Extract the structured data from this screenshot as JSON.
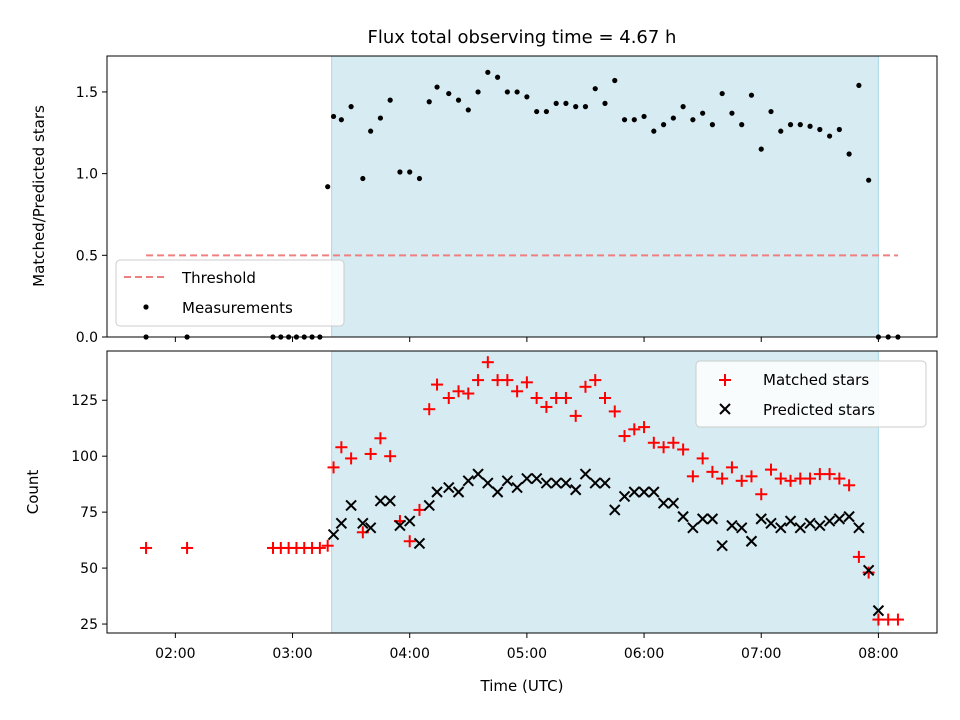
{
  "chart_data": [
    {
      "panel": "top",
      "type": "scatter",
      "title": "Flux total observing time = 4.67 h",
      "xlabel": "",
      "ylabel": "Matched/Predicted stars",
      "xlim": [
        "01:25",
        "08:30"
      ],
      "ylim": [
        0,
        1.72
      ],
      "yticks": [
        "0.0",
        "0.5",
        "1.0",
        "1.5"
      ],
      "xticks": [
        "02:00",
        "03:00",
        "04:00",
        "05:00",
        "06:00",
        "07:00",
        "08:00"
      ],
      "xtick_labels_shown": false,
      "shaded_span": [
        "03:20",
        "08:00"
      ],
      "threshold": {
        "name": "Threshold",
        "value": 0.5,
        "x_range": [
          "01:45",
          "08:10"
        ],
        "color": "#f08080"
      },
      "legend": {
        "position": "lower-left",
        "entries": [
          "Threshold",
          "Measurements"
        ]
      },
      "series": [
        {
          "name": "Measurements",
          "color": "#000000",
          "x": [
            "01:45",
            "02:06",
            "02:50",
            "02:54",
            "02:58",
            "03:02",
            "03:06",
            "03:10",
            "03:14",
            "03:18",
            "03:21",
            "03:25",
            "03:30",
            "03:36",
            "03:40",
            "03:45",
            "03:50",
            "03:55",
            "04:00",
            "04:05",
            "04:10",
            "04:14",
            "04:20",
            "04:25",
            "04:30",
            "04:35",
            "04:40",
            "04:45",
            "04:50",
            "04:55",
            "05:00",
            "05:05",
            "05:10",
            "05:15",
            "05:20",
            "05:25",
            "05:30",
            "05:35",
            "05:40",
            "05:45",
            "05:50",
            "05:55",
            "06:00",
            "06:05",
            "06:10",
            "06:15",
            "06:20",
            "06:25",
            "06:30",
            "06:35",
            "06:40",
            "06:45",
            "06:50",
            "06:55",
            "07:00",
            "07:05",
            "07:10",
            "07:15",
            "07:20",
            "07:25",
            "07:30",
            "07:35",
            "07:40",
            "07:45",
            "07:50",
            "07:55",
            "08:00",
            "08:05",
            "08:10"
          ],
          "y": [
            0.0,
            0.0,
            0.0,
            0.0,
            0.0,
            0.0,
            0.0,
            0.0,
            0.0,
            0.92,
            1.35,
            1.33,
            1.41,
            0.97,
            1.26,
            1.34,
            1.45,
            1.01,
            1.01,
            0.97,
            1.44,
            1.53,
            1.49,
            1.45,
            1.39,
            1.5,
            1.62,
            1.59,
            1.5,
            1.5,
            1.47,
            1.38,
            1.38,
            1.43,
            1.43,
            1.41,
            1.41,
            1.52,
            1.43,
            1.57,
            1.33,
            1.33,
            1.35,
            1.26,
            1.3,
            1.34,
            1.41,
            1.33,
            1.37,
            1.3,
            1.49,
            1.37,
            1.3,
            1.48,
            1.15,
            1.38,
            1.26,
            1.3,
            1.3,
            1.29,
            1.27,
            1.23,
            1.27,
            1.12,
            1.54,
            0.96,
            0.0,
            0.0,
            0.0
          ]
        }
      ]
    },
    {
      "panel": "bottom",
      "type": "scatter",
      "title": "",
      "xlabel": "Time (UTC)",
      "ylabel": "Count",
      "xlim": [
        "01:25",
        "08:30"
      ],
      "ylim": [
        21,
        147
      ],
      "yticks": [
        "25",
        "50",
        "75",
        "100",
        "125"
      ],
      "xticks": [
        "02:00",
        "03:00",
        "04:00",
        "05:00",
        "06:00",
        "07:00",
        "08:00"
      ],
      "shaded_span": [
        "03:20",
        "08:00"
      ],
      "legend": {
        "position": "top-right",
        "entries": [
          "Matched stars",
          "Predicted stars"
        ]
      },
      "series": [
        {
          "name": "Matched stars",
          "marker": "plus",
          "color": "#ff0000",
          "x": [
            "01:45",
            "02:06",
            "02:50",
            "02:54",
            "02:58",
            "03:02",
            "03:06",
            "03:10",
            "03:14",
            "03:18",
            "03:21",
            "03:25",
            "03:30",
            "03:36",
            "03:40",
            "03:45",
            "03:50",
            "03:55",
            "04:00",
            "04:05",
            "04:10",
            "04:14",
            "04:20",
            "04:25",
            "04:30",
            "04:35",
            "04:40",
            "04:45",
            "04:50",
            "04:55",
            "05:00",
            "05:05",
            "05:10",
            "05:15",
            "05:20",
            "05:25",
            "05:30",
            "05:35",
            "05:40",
            "05:45",
            "05:50",
            "05:55",
            "06:00",
            "06:05",
            "06:10",
            "06:15",
            "06:20",
            "06:25",
            "06:30",
            "06:35",
            "06:40",
            "06:45",
            "06:50",
            "06:55",
            "07:00",
            "07:05",
            "07:10",
            "07:15",
            "07:20",
            "07:25",
            "07:30",
            "07:35",
            "07:40",
            "07:45",
            "07:50",
            "07:55",
            "08:00",
            "08:05",
            "08:10"
          ],
          "y": [
            59,
            59,
            59,
            59,
            59,
            59,
            59,
            59,
            59,
            60,
            95,
            104,
            99,
            66,
            101,
            108,
            100,
            71,
            62,
            76,
            121,
            132,
            126,
            129,
            128,
            134,
            142,
            134,
            134,
            129,
            133,
            126,
            122,
            126,
            126,
            118,
            131,
            134,
            126,
            120,
            109,
            112,
            113,
            106,
            104,
            106,
            103,
            91,
            99,
            93,
            90,
            95,
            89,
            91,
            83,
            94,
            90,
            89,
            90,
            90,
            92,
            92,
            90,
            87,
            55,
            48,
            27,
            27,
            27
          ]
        },
        {
          "name": "Predicted stars",
          "marker": "x",
          "color": "#000000",
          "x": [
            "03:21",
            "03:25",
            "03:30",
            "03:36",
            "03:40",
            "03:45",
            "03:50",
            "03:55",
            "04:00",
            "04:05",
            "04:10",
            "04:14",
            "04:20",
            "04:25",
            "04:30",
            "04:35",
            "04:40",
            "04:45",
            "04:50",
            "04:55",
            "05:00",
            "05:05",
            "05:10",
            "05:15",
            "05:20",
            "05:25",
            "05:30",
            "05:35",
            "05:40",
            "05:45",
            "05:50",
            "05:55",
            "06:00",
            "06:05",
            "06:10",
            "06:15",
            "06:20",
            "06:25",
            "06:30",
            "06:35",
            "06:40",
            "06:45",
            "06:50",
            "06:55",
            "07:00",
            "07:05",
            "07:10",
            "07:15",
            "07:20",
            "07:25",
            "07:30",
            "07:35",
            "07:40",
            "07:45",
            "07:50",
            "07:55",
            "08:00"
          ],
          "y": [
            65,
            70,
            78,
            70,
            68,
            80,
            80,
            69,
            71,
            61,
            78,
            84,
            86,
            84,
            89,
            92,
            88,
            84,
            89,
            86,
            90,
            90,
            88,
            88,
            88,
            85,
            92,
            88,
            88,
            76,
            82,
            84,
            84,
            84,
            79,
            79,
            73,
            68,
            72,
            72,
            60,
            69,
            68,
            62,
            72,
            70,
            68,
            71,
            68,
            70,
            69,
            71,
            72,
            73,
            68,
            49,
            31
          ]
        }
      ]
    }
  ]
}
